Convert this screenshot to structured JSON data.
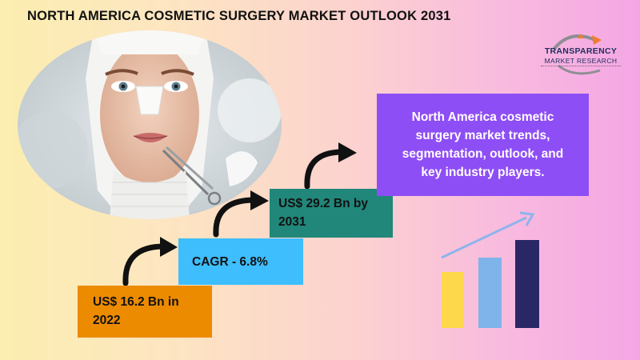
{
  "header": {
    "title": "NORTH AMERICA COSMETIC SURGERY MARKET OUTLOOK 2031"
  },
  "logo": {
    "line1": "TRANSPARENCY",
    "line2": "MARKET RESEARCH"
  },
  "steps": [
    {
      "label_line1": "US$ 16.2 Bn in",
      "label_line2": "2022",
      "color": "#ed8b00"
    },
    {
      "label_line1": "CAGR - 6.8%",
      "color": "#3ebefc"
    },
    {
      "label_line1": "US$ 29.2 Bn by",
      "label_line2": "2031",
      "color": "#21877a"
    }
  ],
  "summary": {
    "line1": "North America cosmetic",
    "line2": "surgery market trends,",
    "line3": "segmentation, outlook, and",
    "line4": "key industry players.",
    "color": "#8e4ef5"
  },
  "colors": {
    "bar1": "#fdd84a",
    "bar2": "#7fb4ea",
    "bar3": "#2a2766",
    "trend_arrow": "#8db4ec"
  },
  "icons": [
    "curved-arrow-icon",
    "growth-chart-icon",
    "logo-swoosh-icon"
  ]
}
